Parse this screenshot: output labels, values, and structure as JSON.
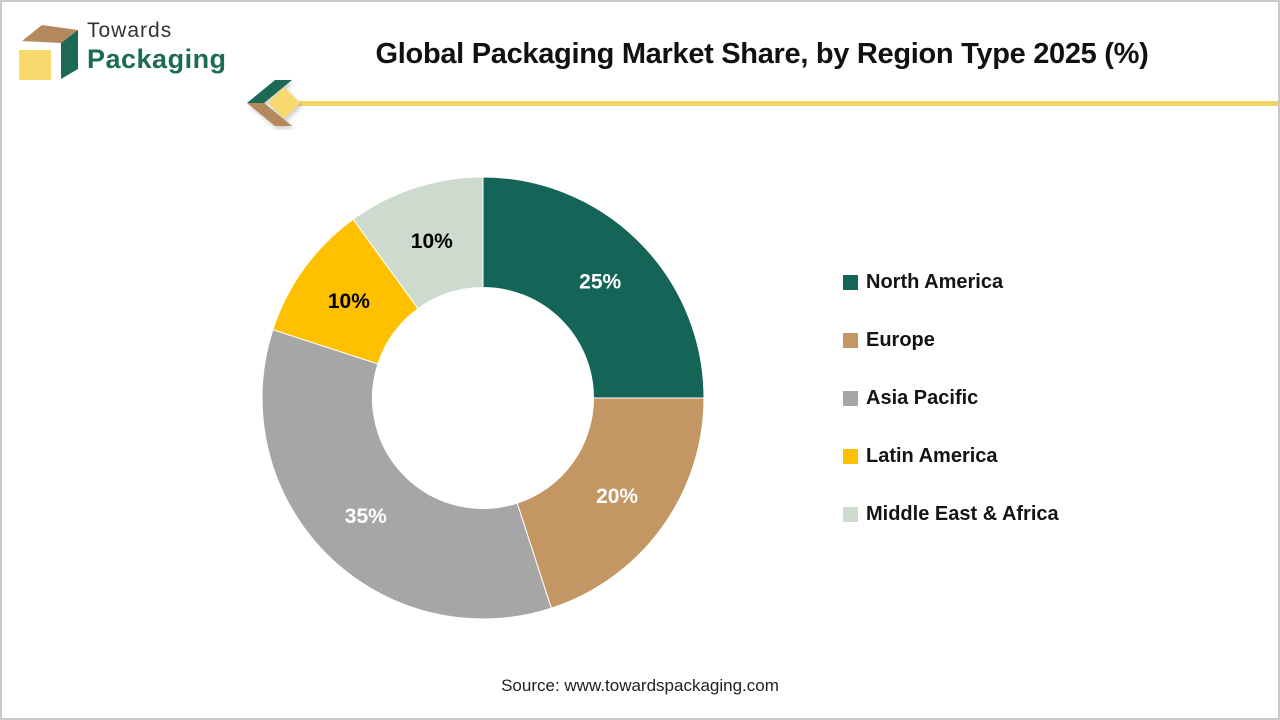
{
  "header": {
    "logo": {
      "line1": "Towards",
      "line2": "Packaging"
    },
    "title": "Global Packaging Market Share, by Region Type 2025 (%)"
  },
  "footer": {
    "source": "Source: www.towardspackaging.com"
  },
  "brand_colors": {
    "logo_top_tan": "#B5895E",
    "logo_side_green": "#1C6A55",
    "logo_front_yellow": "#F8D96E",
    "divider_yellow": "#F3D565",
    "border_gray": "#C9C9C9"
  },
  "chart_data": {
    "type": "pie",
    "subtype": "donut",
    "title": "Global Packaging Market Share, by Region Type 2025 (%)",
    "categories": [
      "North America",
      "Europe",
      "Asia Pacific",
      "Latin America",
      "Middle East & Africa"
    ],
    "values": [
      25,
      20,
      35,
      10,
      10
    ],
    "data_labels": [
      "25%",
      "20%",
      "35%",
      "10%",
      "10%"
    ],
    "colors": [
      "#156458",
      "#C49664",
      "#A6A6A6",
      "#FFC000",
      "#CDDACE"
    ],
    "label_text_colors": [
      "#FFFFFF",
      "#FFFFFF",
      "#FFFFFF",
      "#000000",
      "#000000"
    ],
    "start_angle_deg": 0,
    "direction": "clockwise",
    "inner_radius_ratio": 0.5,
    "legend_position": "right",
    "source": "Source: www.towardspackaging.com"
  }
}
